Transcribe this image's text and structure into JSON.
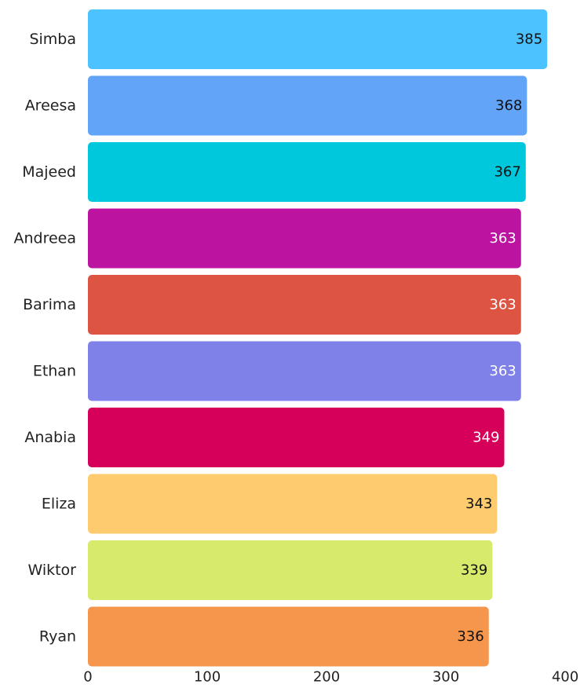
{
  "chart_data": {
    "type": "bar",
    "orientation": "horizontal",
    "categories": [
      "Simba",
      "Areesa",
      "Majeed",
      "Andreea",
      "Barima",
      "Ethan",
      "Anabia",
      "Eliza",
      "Wiktor",
      "Ryan"
    ],
    "values": [
      385,
      368,
      367,
      363,
      363,
      363,
      349,
      343,
      339,
      336
    ],
    "colors": [
      "#4cc3ff",
      "#62a4f8",
      "#00c8dc",
      "#bc14a0",
      "#de5443",
      "#7f80e8",
      "#d6005a",
      "#fecc6e",
      "#d8ea6b",
      "#f6964d"
    ],
    "value_label_colors": [
      "#111111",
      "#111111",
      "#111111",
      "#ffffff",
      "#ffffff",
      "#ffffff",
      "#ffffff",
      "#111111",
      "#111111",
      "#111111"
    ],
    "x_ticks": [
      0,
      100,
      200,
      300,
      400
    ],
    "xlim": [
      0,
      400
    ],
    "grid": false,
    "title": "",
    "xlabel": "",
    "ylabel": ""
  }
}
